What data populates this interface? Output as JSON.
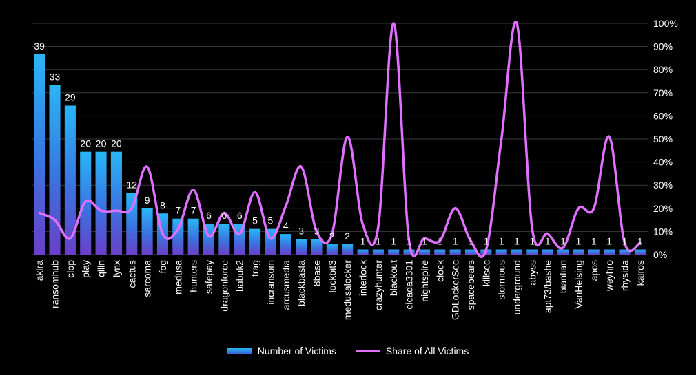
{
  "chart_data": {
    "type": "bar",
    "categories": [
      "akira",
      "ransomhub",
      "clop",
      "play",
      "qilin",
      "lynx",
      "cactus",
      "sarcoma",
      "fog",
      "medusa",
      "hunters",
      "safepay",
      "dragonforce",
      "babuk2",
      "frag",
      "incransom",
      "arcusmedia",
      "blackbasta",
      "8base",
      "lockbit3",
      "medusalocker",
      "interlock",
      "crazyhunter",
      "blackout",
      "cicada3301",
      "nightspire",
      "clock",
      "GDLockerSec",
      "spacebears",
      "killsec",
      "stormous",
      "underground",
      "abyss",
      "apt73/bashe",
      "bianlian",
      "VanHelsing",
      "apos",
      "weyhro",
      "rhysida",
      "kairos"
    ],
    "series": [
      {
        "name": "Number of Victims",
        "type": "bar",
        "axis": "left",
        "values": [
          39,
          33,
          29,
          20,
          20,
          20,
          12,
          9,
          8,
          7,
          7,
          6,
          6,
          6,
          5,
          5,
          4,
          3,
          3,
          2,
          2,
          1,
          1,
          1,
          1,
          1,
          1,
          1,
          1,
          1,
          1,
          1,
          1,
          1,
          1,
          1,
          1,
          1,
          1,
          1
        ]
      },
      {
        "name": "Share of All Victims",
        "type": "line",
        "axis": "right",
        "values": [
          18,
          15,
          7,
          23,
          19,
          19,
          20,
          38,
          9,
          11,
          28,
          8,
          18,
          9,
          27,
          7,
          21,
          38,
          10,
          9,
          51,
          13,
          12,
          100,
          6,
          7,
          6,
          20,
          6,
          2,
          50,
          100,
          11,
          9,
          3,
          20,
          20,
          51,
          5,
          5
        ]
      }
    ],
    "ylim_left": [
      0,
      45
    ],
    "ylim_right": [
      0,
      100
    ],
    "right_ticks": [
      "0%",
      "10%",
      "20%",
      "30%",
      "40%",
      "50%",
      "60%",
      "70%",
      "80%",
      "90%",
      "100%"
    ],
    "grid": true,
    "legend_position": "bottom",
    "xlabel": "",
    "ylabel": "",
    "title": ""
  },
  "legend": {
    "bar_label": "Number of Victims",
    "line_label": "Share of All Victims"
  },
  "colors": {
    "bar_top": "#29b6f6",
    "bar_bottom": "#6a3fc8",
    "line": "#e070ff",
    "grid": "#3a3a3a",
    "text": "#ffffff",
    "background": "#000000"
  }
}
